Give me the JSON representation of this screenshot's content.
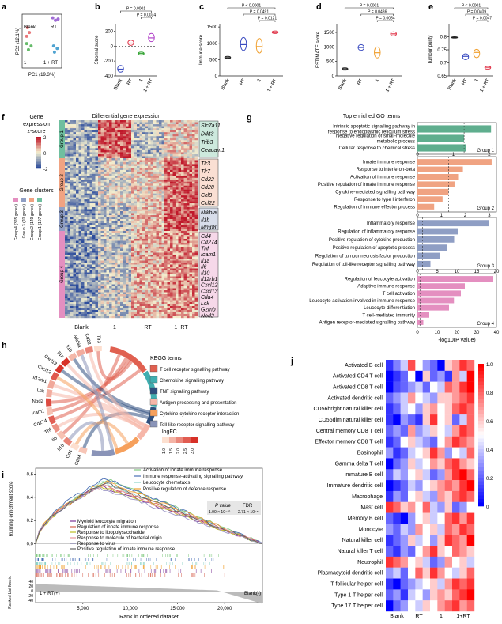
{
  "chart_data": [
    {
      "panel": "a",
      "type": "scatter",
      "xlabel": "PC1 (19.3%)",
      "ylabel": "PC2 (12.1%)",
      "group_labels": [
        "Blank",
        "RT",
        "1",
        "1 + RT"
      ],
      "groups": [
        {
          "name": "Blank",
          "color": "#e8777a",
          "points": [
            [
              -0.8,
              0.55
            ],
            [
              -0.7,
              0.35
            ],
            [
              -0.85,
              0.2
            ]
          ]
        },
        {
          "name": "RT",
          "color": "#a06cd5",
          "points": [
            [
              0.75,
              0.85
            ],
            [
              0.6,
              0.95
            ],
            [
              0.9,
              0.9
            ]
          ]
        },
        {
          "name": "1",
          "color": "#66bb6a",
          "points": [
            [
              -0.75,
              -0.35
            ],
            [
              -0.6,
              -0.2
            ],
            [
              -0.85,
              -0.1
            ]
          ]
        },
        {
          "name": "1 + RT",
          "color": "#4fa3d1",
          "points": [
            [
              0.7,
              -0.45
            ],
            [
              0.85,
              -0.3
            ],
            [
              0.65,
              -0.2
            ]
          ]
        }
      ]
    },
    {
      "panel": "b",
      "type": "violin",
      "ylabel": "Stromal score",
      "categories": [
        "Blank",
        "RT",
        "1",
        "1 + RT"
      ],
      "colors": [
        "#3b4cc0",
        "#e0364a",
        "#2ca02c",
        "#b040c8"
      ],
      "medians": [
        -310,
        40,
        -100,
        110
      ],
      "ranges": [
        [
          -350,
          -260
        ],
        [
          10,
          80
        ],
        [
          -120,
          -80
        ],
        [
          60,
          170
        ]
      ],
      "yticks": [
        -400,
        -200,
        0,
        200
      ],
      "ylim": [
        -400,
        300
      ],
      "pvalues": [
        {
          "label": "P = 0.0001",
          "from": 0,
          "to": 3
        },
        {
          "label": "P = 0.0034",
          "from": 2,
          "to": 3
        }
      ]
    },
    {
      "panel": "c",
      "type": "violin",
      "ylabel": "Immune score",
      "categories": [
        "Blank",
        "RT",
        "1",
        "1 + RT"
      ],
      "colors": [
        "#222222",
        "#3b4cc0",
        "#f0a030",
        "#e0364a"
      ],
      "medians": [
        560,
        960,
        900,
        1330
      ],
      "ranges": [
        [
          530,
          600
        ],
        [
          780,
          1180
        ],
        [
          700,
          1150
        ],
        [
          1300,
          1380
        ]
      ],
      "yticks": [
        0,
        500,
        1000,
        1500
      ],
      "ylim": [
        0,
        1600
      ],
      "pvalues": [
        {
          "label": "P < 0.0001",
          "from": 0,
          "to": 3
        },
        {
          "label": "P = 0.0491",
          "from": 1,
          "to": 3
        },
        {
          "label": "P = 0.0121",
          "from": 2,
          "to": 3
        }
      ]
    },
    {
      "panel": "d",
      "type": "violin",
      "ylabel": "ESTIMATE score",
      "categories": [
        "Blank",
        "RT",
        "1",
        "1 + RT"
      ],
      "colors": [
        "#222222",
        "#3b4cc0",
        "#f0a030",
        "#e0364a"
      ],
      "medians": [
        240,
        980,
        800,
        1450
      ],
      "ranges": [
        [
          200,
          280
        ],
        [
          880,
          1080
        ],
        [
          620,
          1000
        ],
        [
          1380,
          1520
        ]
      ],
      "yticks": [
        0,
        500,
        1000,
        1500
      ],
      "ylim": [
        0,
        1800
      ],
      "pvalues": [
        {
          "label": "P = 0.0001",
          "from": 0,
          "to": 3
        },
        {
          "label": "P = 0.0486",
          "from": 1,
          "to": 3
        },
        {
          "label": "P = 0.0054",
          "from": 2,
          "to": 3
        }
      ]
    },
    {
      "panel": "e",
      "type": "violin",
      "ylabel": "Tumour purity",
      "categories": [
        "Blank",
        "RT",
        "1",
        "1 + RT"
      ],
      "colors": [
        "#222222",
        "#3b4cc0",
        "#f0a030",
        "#e0364a"
      ],
      "medians": [
        0.797,
        0.725,
        0.74,
        0.683
      ],
      "ranges": [
        [
          0.795,
          0.8
        ],
        [
          0.712,
          0.735
        ],
        [
          0.72,
          0.752
        ],
        [
          0.676,
          0.688
        ]
      ],
      "yticks": [
        0.65,
        0.7,
        0.75,
        0.8
      ],
      "ylim": [
        0.65,
        0.85
      ],
      "pvalues": [
        {
          "label": "P < 0.0001",
          "from": 0,
          "to": 3
        },
        {
          "label": "P = 0.0409",
          "from": 1,
          "to": 3
        },
        {
          "label": "P = 0.0047",
          "from": 2,
          "to": 3
        }
      ]
    },
    {
      "panel": "f",
      "type": "heatmap",
      "title": "Differential gene expression",
      "colorbar": {
        "label_lines": [
          "Gene",
          "expression",
          "z-score"
        ],
        "ticks": [
          2,
          0,
          -2
        ]
      },
      "x_groups": [
        "Blank",
        "1",
        "RT",
        "1+RT"
      ],
      "clusters_legend_title": "Gene clusters",
      "clusters": [
        {
          "name": "Group 1",
          "legend": "Group 1 (107 genes)",
          "color": "#6fbf9f",
          "genes": [
            "Slc7a11",
            "Ddit3",
            "Trib3",
            "Ceacam1"
          ]
        },
        {
          "name": "Group 2",
          "legend": "Group 2 (149 genes)",
          "color": "#f0a382",
          "genes": [
            "Tlr3",
            "Tlr7",
            "Cd22",
            "Cd28",
            "Ccl8",
            "Ccl22"
          ]
        },
        {
          "name": "Group 3",
          "legend": "Group 3 (70 genes)",
          "color": "#8f9ec4",
          "genes": [
            "Nfkbia",
            "Il1b",
            "Mmp8"
          ]
        },
        {
          "name": "Group 4",
          "legend": "Group 4 (365 genes)",
          "color": "#e48fc0",
          "genes": [
            "Cd4",
            "Cd274",
            "Tnf",
            "Icam1",
            "Il1a",
            "Il6",
            "Il10",
            "Il12rb1",
            "Cxcl12",
            "Cxcl13",
            "Ctla4",
            "Lck",
            "Gzmb",
            "Nod2"
          ]
        }
      ]
    },
    {
      "panel": "g",
      "type": "bar",
      "title": "Top enriched GO terms",
      "xlabel": "-log10(P value)",
      "groups": [
        {
          "name": "Group 1",
          "color": "#5fae8e",
          "xticks": [
            0,
            1,
            2
          ],
          "xlim": [
            0,
            2.2
          ],
          "terms": [
            "Intrinsic apoptotic signalling pathway in response to endoplasmic reticulum stress",
            "Negative regulation of small-molecule metabolic process",
            "Cellular response to chemical stress"
          ],
          "values": [
            2.05,
            1.3,
            1.35
          ]
        },
        {
          "name": "Group 2",
          "color": "#f0a382",
          "xticks": [
            0,
            1,
            2,
            3
          ],
          "xlim": [
            0,
            3.3
          ],
          "terms": [
            "Innate immune response",
            "Response to interferon-beta",
            "Activation of immune response",
            "Positive regulation of innate immune response",
            "Cytokine-mediated signalling pathway",
            "Response to type I interferon",
            "Regulation of immune effector process"
          ],
          "values": [
            3.1,
            1.9,
            1.7,
            1.55,
            1.3,
            1.05,
            0.7
          ]
        },
        {
          "name": "Group 3",
          "color": "#8f9ec4",
          "xticks": [
            0,
            5,
            10,
            15,
            20
          ],
          "xlim": [
            0,
            20
          ],
          "terms": [
            "Inflammatory response",
            "Regulation of inflammatory response",
            "Positive regulation of cytokine production",
            "Positive regulation of apoptotic process",
            "Regulation of tumour necrosis factor production",
            "Regulation of toll-like receptor signalling pathway"
          ],
          "values": [
            18.2,
            10.2,
            9.3,
            7.6,
            5.7,
            3.3
          ]
        },
        {
          "name": "Group 4",
          "color": "#e48fc0",
          "xticks": [
            0,
            10,
            20,
            30,
            40
          ],
          "xlim": [
            0,
            40
          ],
          "terms": [
            "Regulation of leucocyte activation",
            "Adaptive immune response",
            "T cell activation",
            "Leucocyte activation involved in immune response",
            "Leucocyte differentiation",
            "T cell-mediated immunity",
            "Antigen receptor-mediated signalling pathway"
          ],
          "values": [
            38,
            24,
            22,
            18.5,
            16,
            6,
            3
          ]
        }
      ]
    },
    {
      "panel": "h",
      "type": "chord",
      "legend_title": "KEGG terms",
      "terms": [
        {
          "label": "T cell receptor signalling pathway",
          "color": "#e06050"
        },
        {
          "label": "Chemokine signalling pathway",
          "color": "#40aeb0"
        },
        {
          "label": "TNF signalling pathway",
          "color": "#2f4f7f"
        },
        {
          "label": "Antigen processing and presentation",
          "color": "#f6b6a8"
        },
        {
          "label": "Cytokine-cytokine receptor interaction",
          "color": "#f6a05c"
        },
        {
          "label": "Toll-like receptor signalling pathway",
          "color": "#8a94b8"
        }
      ],
      "genes": [
        "Ctla4",
        "Cd4",
        "Il10",
        "Il6",
        "Tnf",
        "Cd274",
        "Icam1",
        "Nod2",
        "Lck",
        "Il12rb1",
        "Cxcl12",
        "Cxcl13",
        "Il1a",
        "Il1b",
        "Nfkbia",
        "Cd28",
        "Tlr3"
      ],
      "logfc_label": "logFC",
      "logfc_ticks": [
        "1.0",
        "1.5",
        "2.0",
        "2.5",
        "3.0"
      ]
    },
    {
      "panel": "i",
      "type": "line",
      "ylabel": "Running enrichment score",
      "xlabel": "Rank in ordered dataset",
      "metric_label": "Ranked List Metric",
      "xticks": [
        5000,
        10000,
        15000,
        20000
      ],
      "xtick_labels": [
        "5,000",
        "10,000",
        "15,000",
        "20,000"
      ],
      "xlim": [
        0,
        24000
      ],
      "yticks": [
        0.0,
        0.2,
        0.4,
        0.6
      ],
      "ylim": [
        -0.05,
        0.65
      ],
      "metric_yticks": [
        40,
        20,
        0,
        -20,
        -40
      ],
      "left_label": "1 + RT(+)",
      "right_label": "Blank(-)",
      "table": {
        "headers": [
          "P value",
          "FDR"
        ],
        "values": [
          "1.00 × 10⁻¹⁰",
          "2.71 × 10⁻⁸"
        ]
      },
      "series": [
        {
          "name": "Activation of innate immune response",
          "color": "#7fc97f",
          "peak": 0.55,
          "peak_x": 7800
        },
        {
          "name": "Immune response-activating signalling pathway",
          "color": "#4a6fb5",
          "peak": 0.56,
          "peak_x": 7400
        },
        {
          "name": "Leucocyte chemotaxis",
          "color": "#8dd3c7",
          "peak": 0.53,
          "peak_x": 7100
        },
        {
          "name": "Positive regulation of defence response",
          "color": "#f0a030",
          "peak": 0.54,
          "peak_x": 7600
        },
        {
          "name": "Myeloid leucocyte migration",
          "color": "#7b3294",
          "peak": 0.5,
          "peak_x": 6800
        },
        {
          "name": "Regulation of innate immune response",
          "color": "#d6604d",
          "peak": 0.51,
          "peak_x": 7300
        },
        {
          "name": "Response to lipopolysaccharide",
          "color": "#bcbd22",
          "peak": 0.49,
          "peak_x": 7000
        },
        {
          "name": "Response to molecule of bacterial origin",
          "color": "#e7969c",
          "peak": 0.5,
          "peak_x": 7200
        },
        {
          "name": "Response to virus",
          "color": "#9e9ac8",
          "peak": 0.48,
          "peak_x": 6600
        },
        {
          "name": "Positive regulation of innate immune response",
          "color": "#636363",
          "peak": 0.52,
          "peak_x": 7500
        }
      ]
    },
    {
      "panel": "j",
      "type": "heatmap",
      "x_groups": [
        "Blank",
        "RT",
        "1",
        "1+RT"
      ],
      "n_columns": 12,
      "colorbar_ticks": [
        1.0,
        0.8,
        0.6,
        0.4,
        0.2,
        0
      ],
      "rows": [
        "Activated B cell",
        "Activated CD4 T cell",
        "Activated CD8 T cell",
        "Activated dendritic cell",
        "CD56bright natural killer cell",
        "CD56dim natural killer cell",
        "Central memory CD8 T cell",
        "Effector memory CD8 T cell",
        "Eosinophil",
        "Gamma delta T cell",
        "Immature B cell",
        "Immature dendritic cell",
        "Macrophage",
        "Mast cell",
        "Memory B cell",
        "Monocyte",
        "Natural killer cell",
        "Natural killer T cell",
        "Neutrophil",
        "Plasmacytoid dendritic cell",
        "T follicular helper cell",
        "Type 1 T helper cell",
        "Type 17 T helper cell"
      ],
      "values": [
        [
          0.1,
          0.25,
          0.4,
          0.85,
          0.5,
          0.3,
          0.2,
          0.0,
          0.6,
          0.7,
          0.9,
          0.8
        ],
        [
          0.0,
          0.1,
          0.2,
          0.5,
          0.0,
          0.6,
          0.2,
          0.3,
          0.1,
          0.7,
          0.4,
          1.0
        ],
        [
          0.0,
          0.15,
          0.2,
          0.3,
          0.4,
          0.2,
          0.5,
          0.4,
          0.8,
          0.7,
          0.9,
          1.0
        ],
        [
          0.2,
          0.3,
          0.4,
          0.7,
          0.5,
          0.4,
          0.3,
          0.6,
          0.6,
          0.7,
          0.8,
          0.9
        ],
        [
          0.1,
          0.2,
          0.4,
          0.5,
          0.3,
          0.6,
          0.7,
          0.5,
          0.6,
          0.8,
          0.9,
          0.8
        ],
        [
          0.1,
          0.0,
          0.3,
          0.2,
          0.1,
          0.6,
          0.9,
          0.5,
          0.6,
          0.2,
          0.4,
          0.8
        ],
        [
          0.2,
          0.3,
          0.2,
          0.7,
          0.3,
          0.4,
          0.6,
          0.5,
          0.4,
          0.7,
          0.9,
          0.8
        ],
        [
          0.1,
          0.2,
          0.5,
          0.6,
          0.4,
          0.3,
          0.2,
          0.5,
          0.7,
          0.9,
          0.8,
          0.7
        ],
        [
          0.3,
          0.1,
          0.2,
          0.4,
          0.5,
          0.6,
          0.9,
          0.7,
          0.3,
          0.5,
          0.4,
          0.8
        ],
        [
          0.0,
          0.2,
          0.3,
          0.6,
          0.4,
          0.5,
          0.7,
          0.6,
          0.8,
          0.9,
          0.7,
          0.6
        ],
        [
          0.2,
          0.4,
          0.3,
          0.5,
          0.6,
          0.4,
          0.2,
          0.3,
          0.7,
          0.9,
          1.0,
          0.8
        ],
        [
          0.0,
          0.1,
          0.2,
          0.4,
          0.3,
          0.5,
          0.6,
          0.7,
          0.8,
          0.7,
          0.9,
          1.0
        ],
        [
          0.1,
          0.3,
          0.2,
          0.5,
          0.6,
          0.4,
          0.3,
          0.7,
          0.6,
          0.8,
          0.9,
          0.8
        ],
        [
          0.9,
          0.8,
          0.6,
          0.7,
          0.5,
          0.8,
          0.4,
          0.3,
          0.6,
          0.2,
          0.3,
          0.5
        ],
        [
          0.2,
          0.1,
          0.0,
          0.3,
          0.5,
          0.6,
          0.4,
          0.5,
          0.8,
          0.9,
          0.7,
          0.9
        ],
        [
          0.3,
          0.2,
          0.4,
          0.3,
          0.7,
          0.5,
          0.6,
          0.4,
          0.8,
          0.7,
          0.9,
          0.8
        ],
        [
          0.1,
          0.2,
          0.3,
          0.6,
          0.4,
          0.5,
          0.3,
          0.6,
          0.9,
          0.8,
          0.7,
          1.0
        ],
        [
          0.2,
          0.1,
          0.3,
          0.2,
          0.5,
          0.7,
          0.9,
          0.6,
          0.5,
          0.8,
          0.7,
          0.6
        ],
        [
          0.9,
          0.8,
          0.7,
          0.5,
          0.6,
          0.4,
          0.2,
          0.3,
          0.7,
          0.5,
          0.6,
          0.4
        ],
        [
          0.3,
          0.4,
          0.2,
          0.5,
          0.8,
          0.6,
          0.9,
          0.7,
          0.5,
          0.4,
          0.6,
          0.8
        ],
        [
          0.1,
          0.0,
          0.2,
          0.3,
          0.4,
          0.5,
          0.6,
          0.4,
          0.7,
          0.9,
          0.8,
          0.9
        ],
        [
          0.2,
          0.3,
          0.1,
          0.4,
          0.5,
          0.3,
          0.6,
          0.7,
          0.6,
          0.8,
          0.9,
          1.0
        ],
        [
          0.0,
          0.2,
          0.3,
          0.5,
          0.4,
          0.6,
          0.5,
          0.7,
          0.8,
          0.9,
          0.7,
          0.8
        ]
      ]
    }
  ]
}
